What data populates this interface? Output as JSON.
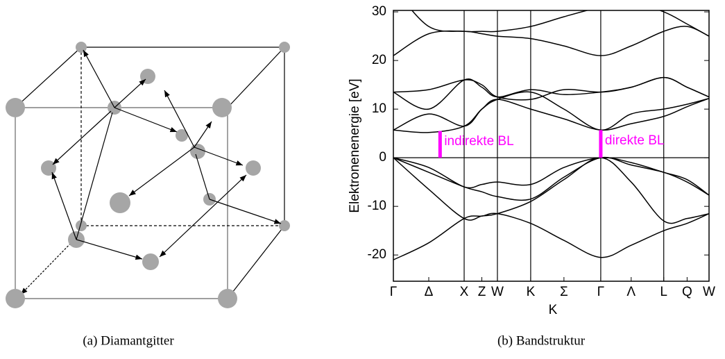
{
  "captions": [
    "(a) Diamantgitter",
    "(b) Bandstruktur"
  ],
  "chart_data": {
    "type": "line",
    "ylabel": "Elektronenenergie [eV]",
    "xlabel": "K",
    "ylim": [
      -25.4,
      30.3
    ],
    "yticks": [
      -20,
      -10,
      0,
      10,
      20,
      30
    ],
    "xlim": [
      0,
      4.46
    ],
    "xticks": [
      {
        "value": 0,
        "label": "Γ"
      },
      {
        "value": 0.5,
        "label": "Δ"
      },
      {
        "value": 1,
        "label": "X"
      },
      {
        "value": 1.25,
        "label": "Z"
      },
      {
        "value": 1.47,
        "label": "W"
      },
      {
        "value": 1.94,
        "label": "K"
      },
      {
        "value": 2.41,
        "label": "Σ"
      },
      {
        "value": 2.93,
        "label": "Γ"
      },
      {
        "value": 3.36,
        "label": "Λ"
      },
      {
        "value": 3.82,
        "label": "L"
      },
      {
        "value": 4.15,
        "label": "Q"
      },
      {
        "value": 4.46,
        "label": "W"
      }
    ],
    "symmetry_lines": [
      1,
      1.47,
      1.94,
      2.93,
      3.82
    ],
    "hline": 0,
    "color": "#000000",
    "x": [
      0,
      0.5,
      1,
      1.25,
      1.47,
      1.94,
      2.41,
      2.93,
      3.36,
      3.82,
      4.15,
      4.46
    ],
    "series": [
      {
        "values": [
          -21,
          -17.5,
          -12.5,
          -12,
          -11.5,
          -13.5,
          -17,
          -20.5,
          -18,
          -15,
          -13.5,
          -11.5
        ]
      },
      {
        "values": [
          0,
          -6.5,
          -12.5,
          -12,
          -11.5,
          -9,
          -4.5,
          0,
          -5,
          -13,
          -12.5,
          -11.5
        ]
      },
      {
        "values": [
          0,
          -3,
          -6,
          -7,
          -8,
          -8.5,
          -4,
          0,
          -1.5,
          -3,
          -5,
          -7.7
        ]
      },
      {
        "values": [
          0,
          -2,
          -6,
          -5.5,
          -5,
          -5.5,
          -2,
          0,
          -1,
          -3,
          -4.5,
          -7.7
        ]
      },
      {
        "values": [
          5.7,
          5.2,
          6.5,
          10,
          12,
          10,
          8,
          5.7,
          7,
          8.5,
          10.5,
          12.2
        ]
      },
      {
        "values": [
          5.7,
          9,
          6.5,
          10,
          12,
          13.5,
          10,
          5.7,
          9,
          10,
          11,
          12.2
        ]
      },
      {
        "values": [
          13.5,
          10,
          16,
          14.5,
          12.5,
          14,
          13,
          13.5,
          14.5,
          16.5,
          14.5,
          12.5
        ]
      },
      {
        "values": [
          13.5,
          14,
          16,
          15,
          12.5,
          12,
          14,
          13.5,
          14.5,
          16.5,
          14.5,
          12.5
        ]
      },
      {
        "values": [
          21,
          25.5,
          26,
          25.5,
          25,
          24.5,
          23,
          21,
          23,
          26,
          27,
          25
        ]
      },
      {
        "values": [
          35,
          27,
          26,
          26,
          26,
          27,
          29,
          31,
          32,
          30,
          27.5,
          25
        ]
      }
    ],
    "annotations": [
      {
        "text": "indirekte BL",
        "x": 0.66,
        "y1": 0,
        "y2": 5.5,
        "color": "#ff00ff"
      },
      {
        "text": "direkte BL",
        "x": 2.93,
        "y1": 0,
        "y2": 5.7,
        "color": "#ff00ff"
      }
    ]
  }
}
